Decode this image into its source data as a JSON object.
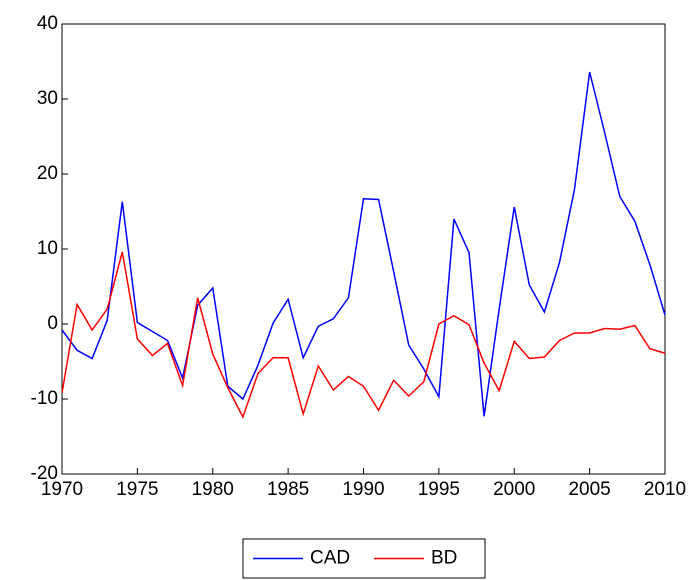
{
  "chart_data": {
    "type": "line",
    "x": [
      1970,
      1971,
      1972,
      1973,
      1974,
      1975,
      1976,
      1977,
      1978,
      1979,
      1980,
      1981,
      1982,
      1983,
      1984,
      1985,
      1986,
      1987,
      1988,
      1989,
      1990,
      1991,
      1992,
      1993,
      1994,
      1995,
      1996,
      1997,
      1998,
      1999,
      2000,
      2001,
      2002,
      2003,
      2004,
      2005,
      2006,
      2007,
      2008,
      2009,
      2010
    ],
    "series": [
      {
        "name": "CAD",
        "color": "#0000ff",
        "values": [
          -0.8,
          -3.5,
          -4.6,
          0.5,
          16.3,
          0.2,
          -1,
          -2.2,
          -7.2,
          2.5,
          4.8,
          -8.3,
          -10,
          -5.5,
          0.1,
          3.3,
          -4.5,
          -0.3,
          0.7,
          3.5,
          16.7,
          16.6,
          7,
          -2.8,
          -6,
          -9.7,
          14,
          9.5,
          -12.3,
          2,
          15.6,
          5.2,
          1.6,
          8.2,
          18,
          33.6,
          25.5,
          17,
          13.7,
          7.9,
          1.2
        ]
      },
      {
        "name": "BD",
        "color": "#ff0000",
        "values": [
          -9.2,
          2.6,
          -0.8,
          2,
          9.6,
          -2,
          -4.2,
          -2.6,
          -8.2,
          3.5,
          -4,
          -8.5,
          -12.4,
          -6.6,
          -4.5,
          -4.5,
          -12,
          -5.6,
          -8.8,
          -7,
          -8.3,
          -11.5,
          -7.5,
          -9.6,
          -7.7,
          0,
          1.1,
          -0.1,
          -5.2,
          -8.9,
          -2.3,
          -4.6,
          -4.4,
          -2.2,
          -1.2,
          -1.2,
          -0.6,
          -0.7,
          -0.2,
          -3.3,
          -3.9
        ]
      }
    ],
    "xlim": [
      1970,
      2010
    ],
    "xticks": [
      1970,
      1975,
      1980,
      1985,
      1990,
      1995,
      2000,
      2005,
      2010
    ],
    "ylim": [
      -20,
      40
    ],
    "yticks": [
      -20,
      -10,
      0,
      10,
      20,
      30,
      40
    ],
    "legend": "bottom"
  }
}
